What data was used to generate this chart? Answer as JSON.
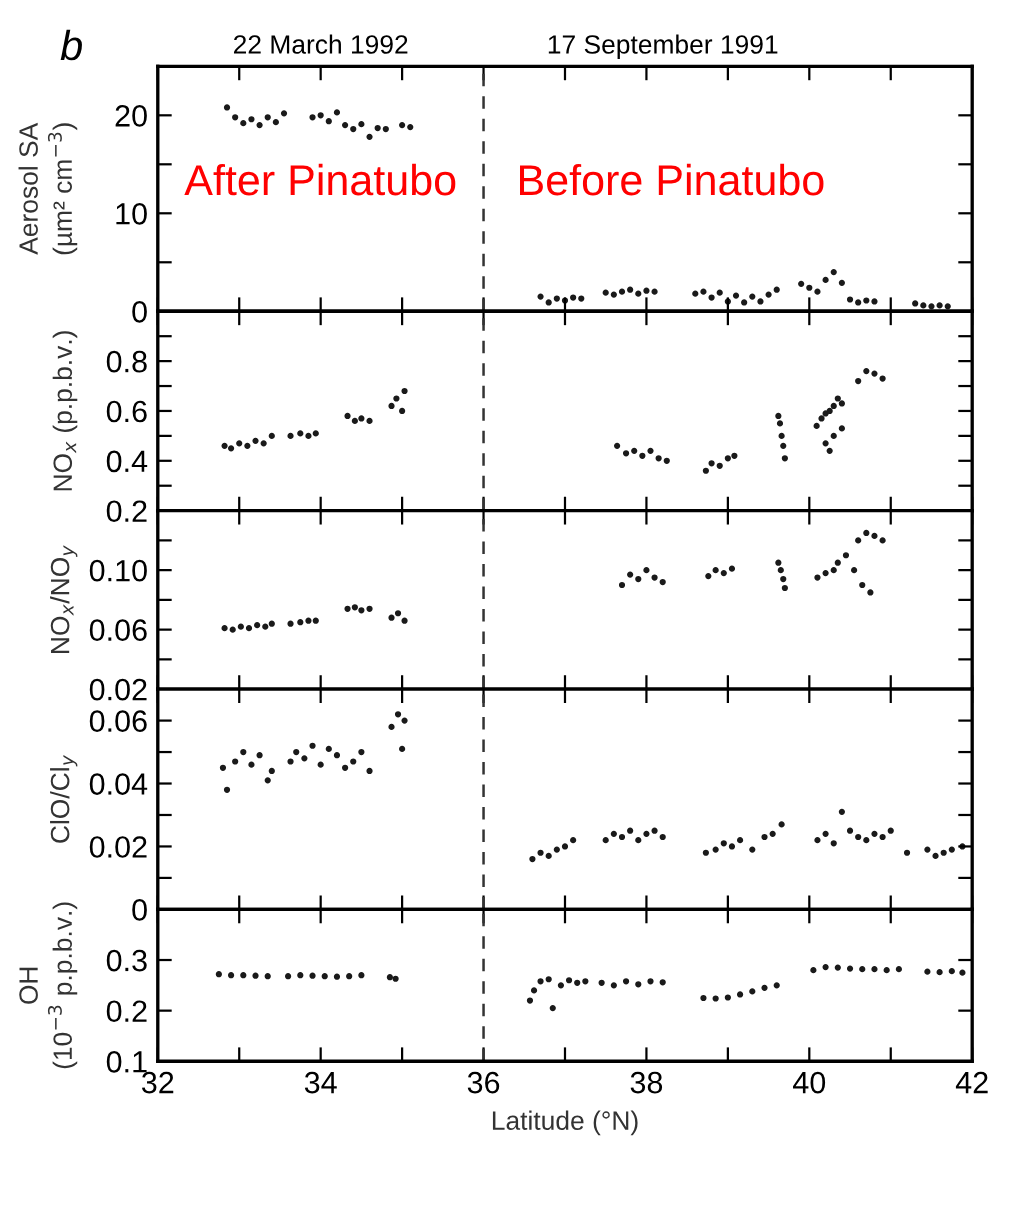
{
  "chart_data": [
    {
      "type": "scatter",
      "ylabel": "Aerosol SA\n(µm² cm$^{−3}$)",
      "annotations": [
        "b",
        "22 March 1992",
        "17 September 1991",
        "After Pinatubo",
        "Before Pinatubo"
      ],
      "marker": "circle",
      "tick_labels": "y",
      "xlim": [
        32,
        42
      ],
      "xticks": [
        32,
        {
          "value": 33,
          "label": null
        },
        34,
        {
          "value": 35,
          "label": null
        },
        36,
        {
          "value": 37,
          "label": null
        },
        38,
        {
          "value": 39,
          "label": null
        },
        40,
        {
          "value": 41,
          "label": null
        },
        42
      ],
      "ylim": [
        0,
        25
      ],
      "yticks": [
        0,
        {
          "value": 5,
          "label": null
        },
        10,
        {
          "value": 15,
          "label": null
        },
        20
      ],
      "ref_lines": [
        {
          "axis": "x",
          "value": 36,
          "line_style": "dashed"
        }
      ],
      "series": [
        {
          "color": "#1a1a1a",
          "x": [
            32.85,
            32.95,
            33.05,
            33.15,
            33.25,
            33.35,
            33.45,
            33.55,
            33.9,
            34.0,
            34.1,
            34.2,
            34.3,
            34.4,
            34.5,
            34.6,
            34.7,
            34.8,
            35.0,
            35.1,
            36.7,
            36.8,
            36.9,
            37.0,
            37.1,
            37.2,
            37.5,
            37.6,
            37.7,
            37.8,
            37.9,
            38.0,
            38.1,
            38.6,
            38.7,
            38.8,
            38.9,
            39.0,
            39.1,
            39.2,
            39.3,
            39.4,
            39.5,
            39.6,
            39.9,
            40.0,
            40.1,
            40.2,
            40.3,
            40.4,
            40.5,
            40.6,
            40.7,
            40.8,
            41.3,
            41.4,
            41.5,
            41.6,
            41.7
          ],
          "values": [
            20.8,
            19.8,
            19.2,
            19.6,
            19.0,
            19.8,
            19.3,
            20.2,
            19.8,
            20.0,
            19.4,
            20.3,
            19.0,
            18.6,
            19.1,
            17.8,
            18.7,
            18.6,
            19.0,
            18.8,
            1.5,
            0.9,
            1.3,
            1.1,
            1.4,
            1.3,
            1.9,
            1.7,
            2.0,
            2.2,
            1.8,
            2.1,
            2.0,
            1.8,
            2.0,
            1.4,
            1.9,
            1.0,
            1.6,
            0.9,
            1.5,
            1.0,
            1.7,
            2.2,
            2.8,
            2.4,
            2.0,
            3.2,
            4.0,
            2.9,
            1.2,
            0.9,
            1.1,
            1.0,
            0.8,
            0.6,
            0.5,
            0.6,
            0.5
          ]
        }
      ]
    },
    {
      "type": "scatter",
      "ylabel": "NO$_{x}$ (p.p.b.v.)",
      "marker": "circle",
      "tick_labels": "y",
      "xlim": [
        32,
        42
      ],
      "xticks": [
        32,
        {
          "value": 33,
          "label": null
        },
        34,
        {
          "value": 35,
          "label": null
        },
        36,
        {
          "value": 37,
          "label": null
        },
        38,
        {
          "value": 39,
          "label": null
        },
        40,
        {
          "value": 41,
          "label": null
        },
        42
      ],
      "ylim": [
        0.2,
        1.0
      ],
      "yticks": [
        0.2,
        {
          "value": 0.3,
          "label": null
        },
        0.4,
        {
          "value": 0.5,
          "label": null
        },
        0.6,
        {
          "value": 0.7,
          "label": null
        },
        0.8,
        {
          "value": 0.9,
          "label": null
        }
      ],
      "ref_lines": [
        {
          "axis": "x",
          "value": 36,
          "line_style": "dashed"
        }
      ],
      "series": [
        {
          "color": "#1a1a1a",
          "x": [
            32.82,
            32.9,
            33.0,
            33.1,
            33.2,
            33.3,
            33.4,
            33.63,
            33.75,
            33.85,
            33.94,
            34.33,
            34.42,
            34.5,
            34.6,
            34.87,
            34.93,
            35.0,
            35.03,
            37.64,
            37.75,
            37.85,
            37.95,
            38.05,
            38.15,
            38.25,
            38.73,
            38.8,
            38.9,
            39.0,
            39.08,
            39.62,
            39.64,
            39.66,
            39.68,
            39.7,
            40.09,
            40.15,
            40.2,
            40.25,
            40.3,
            40.35,
            40.4,
            40.2,
            40.25,
            40.3,
            40.4,
            40.6,
            40.7,
            40.8,
            40.9
          ],
          "values": [
            0.46,
            0.45,
            0.47,
            0.46,
            0.48,
            0.47,
            0.5,
            0.5,
            0.51,
            0.5,
            0.51,
            0.58,
            0.56,
            0.57,
            0.56,
            0.62,
            0.65,
            0.6,
            0.68,
            0.46,
            0.43,
            0.44,
            0.42,
            0.44,
            0.41,
            0.4,
            0.36,
            0.39,
            0.38,
            0.41,
            0.42,
            0.58,
            0.55,
            0.5,
            0.46,
            0.41,
            0.54,
            0.57,
            0.59,
            0.6,
            0.62,
            0.65,
            0.63,
            0.47,
            0.44,
            0.5,
            0.53,
            0.72,
            0.76,
            0.75,
            0.73
          ]
        }
      ]
    },
    {
      "type": "scatter",
      "ylabel": "NO$_{x}$/NO$_{y}$",
      "marker": "circle",
      "tick_labels": "y",
      "xlim": [
        32,
        42
      ],
      "xticks": [
        32,
        {
          "value": 33,
          "label": null
        },
        34,
        {
          "value": 35,
          "label": null
        },
        36,
        {
          "value": 37,
          "label": null
        },
        38,
        {
          "value": 39,
          "label": null
        },
        40,
        {
          "value": 41,
          "label": null
        },
        42
      ],
      "ylim": [
        0.02,
        0.14
      ],
      "yticks": [
        0.02,
        {
          "value": 0.04,
          "label": null
        },
        0.06,
        {
          "value": 0.08,
          "label": null
        },
        "0.10",
        {
          "value": 0.12,
          "label": null
        }
      ],
      "ref_lines": [
        {
          "axis": "x",
          "value": 36,
          "line_style": "dashed"
        }
      ],
      "series": [
        {
          "color": "#1a1a1a",
          "x": [
            32.82,
            32.92,
            33.02,
            33.12,
            33.22,
            33.32,
            33.4,
            33.63,
            33.75,
            33.85,
            33.94,
            34.33,
            34.42,
            34.5,
            34.6,
            34.87,
            34.95,
            35.03,
            37.7,
            37.8,
            37.9,
            38.0,
            38.1,
            38.2,
            38.76,
            38.85,
            38.95,
            39.05,
            39.62,
            39.65,
            39.68,
            39.7,
            40.1,
            40.2,
            40.3,
            40.35,
            40.45,
            40.55,
            40.65,
            40.75,
            40.6,
            40.7,
            40.8,
            40.9
          ],
          "values": [
            0.061,
            0.06,
            0.062,
            0.061,
            0.063,
            0.062,
            0.064,
            0.064,
            0.065,
            0.066,
            0.066,
            0.074,
            0.075,
            0.073,
            0.074,
            0.068,
            0.071,
            0.066,
            0.09,
            0.097,
            0.094,
            0.1,
            0.095,
            0.092,
            0.096,
            0.1,
            0.098,
            0.101,
            0.105,
            0.1,
            0.094,
            0.088,
            0.095,
            0.098,
            0.1,
            0.105,
            0.11,
            0.1,
            0.09,
            0.085,
            0.12,
            0.125,
            0.123,
            0.12
          ]
        }
      ]
    },
    {
      "type": "scatter",
      "ylabel": "ClO/Cl$_{y}$",
      "marker": "circle",
      "tick_labels": "y",
      "xlim": [
        32,
        42
      ],
      "xticks": [
        32,
        {
          "value": 33,
          "label": null
        },
        34,
        {
          "value": 35,
          "label": null
        },
        36,
        {
          "value": 37,
          "label": null
        },
        38,
        {
          "value": 39,
          "label": null
        },
        40,
        {
          "value": 41,
          "label": null
        },
        42
      ],
      "ylim": [
        0,
        0.07
      ],
      "yticks": [
        0,
        {
          "value": 0.01,
          "label": null
        },
        0.02,
        {
          "value": 0.03,
          "label": null
        },
        0.04,
        {
          "value": 0.05,
          "label": null
        },
        0.06
      ],
      "ref_lines": [
        {
          "axis": "x",
          "value": 36,
          "line_style": "dashed"
        }
      ],
      "series": [
        {
          "color": "#1a1a1a",
          "x": [
            32.8,
            32.85,
            32.95,
            33.05,
            33.15,
            33.25,
            33.35,
            33.4,
            33.63,
            33.7,
            33.8,
            33.9,
            34.0,
            34.1,
            34.2,
            34.3,
            34.4,
            34.5,
            34.6,
            34.87,
            34.95,
            35.0,
            35.03,
            36.6,
            36.7,
            36.8,
            36.9,
            37.0,
            37.1,
            37.5,
            37.6,
            37.7,
            37.8,
            37.9,
            38.0,
            38.1,
            38.2,
            38.73,
            38.85,
            38.95,
            39.05,
            39.15,
            39.3,
            39.45,
            39.55,
            39.66,
            40.1,
            40.2,
            40.3,
            40.4,
            40.5,
            40.6,
            40.7,
            40.8,
            40.9,
            41.0,
            41.2,
            41.45,
            41.55,
            41.65,
            41.75,
            41.88
          ],
          "values": [
            0.045,
            0.038,
            0.047,
            0.05,
            0.046,
            0.049,
            0.041,
            0.044,
            0.047,
            0.05,
            0.048,
            0.052,
            0.046,
            0.051,
            0.049,
            0.045,
            0.047,
            0.05,
            0.044,
            0.058,
            0.062,
            0.051,
            0.06,
            0.016,
            0.018,
            0.017,
            0.019,
            0.02,
            0.022,
            0.022,
            0.024,
            0.023,
            0.025,
            0.022,
            0.024,
            0.025,
            0.023,
            0.018,
            0.019,
            0.021,
            0.02,
            0.022,
            0.019,
            0.023,
            0.024,
            0.027,
            0.022,
            0.024,
            0.021,
            0.031,
            0.025,
            0.023,
            0.022,
            0.024,
            0.023,
            0.025,
            0.018,
            0.019,
            0.017,
            0.018,
            0.019,
            0.02
          ]
        }
      ]
    },
    {
      "type": "scatter",
      "ylabel": "OH\n(10$^{−3}$ p.p.b.v.)",
      "xlabel": "Latitude (°N)",
      "marker": "circle",
      "xlim": [
        32,
        42
      ],
      "xticks": [
        32,
        {
          "value": 33,
          "label": null
        },
        34,
        {
          "value": 35,
          "label": null
        },
        36,
        {
          "value": 37,
          "label": null
        },
        38,
        {
          "value": 39,
          "label": null
        },
        40,
        {
          "value": 41,
          "label": null
        },
        42
      ],
      "ylim": [
        0.1,
        0.4
      ],
      "yticks": [
        0.1,
        0.2,
        0.3
      ],
      "ref_lines": [
        {
          "axis": "x",
          "value": 36,
          "line_style": "dashed"
        }
      ],
      "series": [
        {
          "color": "#1a1a1a",
          "x": [
            32.75,
            32.9,
            33.05,
            33.2,
            33.35,
            33.6,
            33.75,
            33.9,
            34.05,
            34.2,
            34.35,
            34.5,
            34.85,
            34.92,
            36.57,
            36.62,
            36.7,
            36.8,
            36.85,
            36.95,
            37.05,
            37.15,
            37.25,
            37.45,
            37.6,
            37.75,
            37.9,
            38.05,
            38.2,
            38.7,
            38.85,
            39.0,
            39.15,
            39.3,
            39.45,
            39.6,
            40.05,
            40.2,
            40.35,
            40.5,
            40.65,
            40.8,
            40.95,
            41.1,
            41.45,
            41.6,
            41.75,
            41.88
          ],
          "values": [
            0.272,
            0.27,
            0.27,
            0.269,
            0.268,
            0.268,
            0.27,
            0.269,
            0.268,
            0.267,
            0.268,
            0.27,
            0.266,
            0.263,
            0.22,
            0.24,
            0.258,
            0.262,
            0.205,
            0.25,
            0.26,
            0.255,
            0.258,
            0.255,
            0.25,
            0.258,
            0.252,
            0.258,
            0.256,
            0.225,
            0.224,
            0.226,
            0.232,
            0.238,
            0.245,
            0.25,
            0.28,
            0.286,
            0.285,
            0.283,
            0.282,
            0.282,
            0.28,
            0.282,
            0.277,
            0.276,
            0.278,
            0.275
          ]
        }
      ]
    }
  ]
}
